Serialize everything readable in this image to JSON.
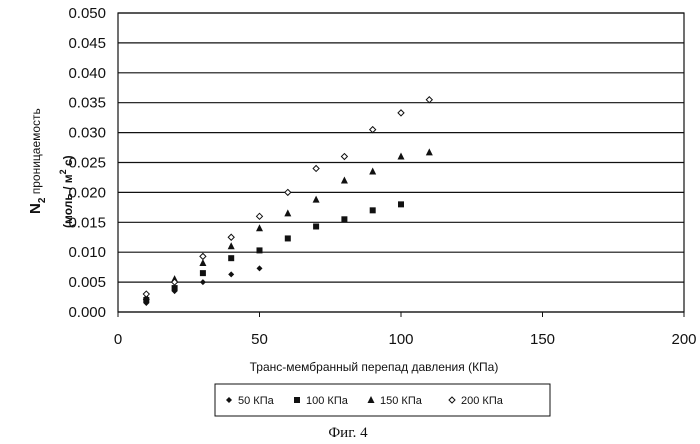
{
  "chart_data": {
    "type": "scatter",
    "title": "",
    "xlabel": "Транс-мембранный перепад давления (КПа)",
    "ylabel": {
      "n": "N",
      "sub": "2",
      "text": " проницаемость",
      "units_open": "(моль / м",
      "units_sup": "2",
      "units_close": " с)"
    },
    "xlim": [
      0,
      200
    ],
    "ylim": [
      0,
      0.05
    ],
    "xticks": [
      "0",
      "50",
      "100",
      "150",
      "200"
    ],
    "yticks": [
      "0.000",
      "0.005",
      "0.010",
      "0.015",
      "0.020",
      "0.025",
      "0.030",
      "0.035",
      "0.040",
      "0.045",
      "0.050"
    ],
    "grid": "horizontal",
    "legend_position": "bottom",
    "series": [
      {
        "name": "50 КПа",
        "marker": "diamond",
        "points": [
          [
            10,
            0.0015
          ],
          [
            20,
            0.0035
          ],
          [
            30,
            0.005
          ],
          [
            40,
            0.0063
          ],
          [
            50,
            0.0073
          ]
        ]
      },
      {
        "name": "100 КПа",
        "marker": "square",
        "points": [
          [
            10,
            0.002
          ],
          [
            20,
            0.004
          ],
          [
            30,
            0.0065
          ],
          [
            40,
            0.009
          ],
          [
            50,
            0.0103
          ],
          [
            60,
            0.0123
          ],
          [
            70,
            0.0143
          ],
          [
            80,
            0.0155
          ],
          [
            90,
            0.017
          ],
          [
            100,
            0.018
          ]
        ]
      },
      {
        "name": "150 КПа",
        "marker": "triangle",
        "points": [
          [
            10,
            0.0025
          ],
          [
            20,
            0.0055
          ],
          [
            30,
            0.0082
          ],
          [
            40,
            0.011
          ],
          [
            50,
            0.014
          ],
          [
            60,
            0.0165
          ],
          [
            70,
            0.0188
          ],
          [
            80,
            0.022
          ],
          [
            90,
            0.0235
          ],
          [
            100,
            0.026
          ],
          [
            110,
            0.0267
          ]
        ]
      },
      {
        "name": "200 КПа",
        "marker": "diamond-open",
        "points": [
          [
            10,
            0.003
          ],
          [
            20,
            0.005
          ],
          [
            30,
            0.0093
          ],
          [
            40,
            0.0125
          ],
          [
            50,
            0.016
          ],
          [
            60,
            0.02
          ],
          [
            70,
            0.024
          ],
          [
            80,
            0.026
          ],
          [
            90,
            0.0305
          ],
          [
            100,
            0.0333
          ],
          [
            110,
            0.0355
          ]
        ]
      }
    ]
  },
  "caption": "Фиг. 4"
}
